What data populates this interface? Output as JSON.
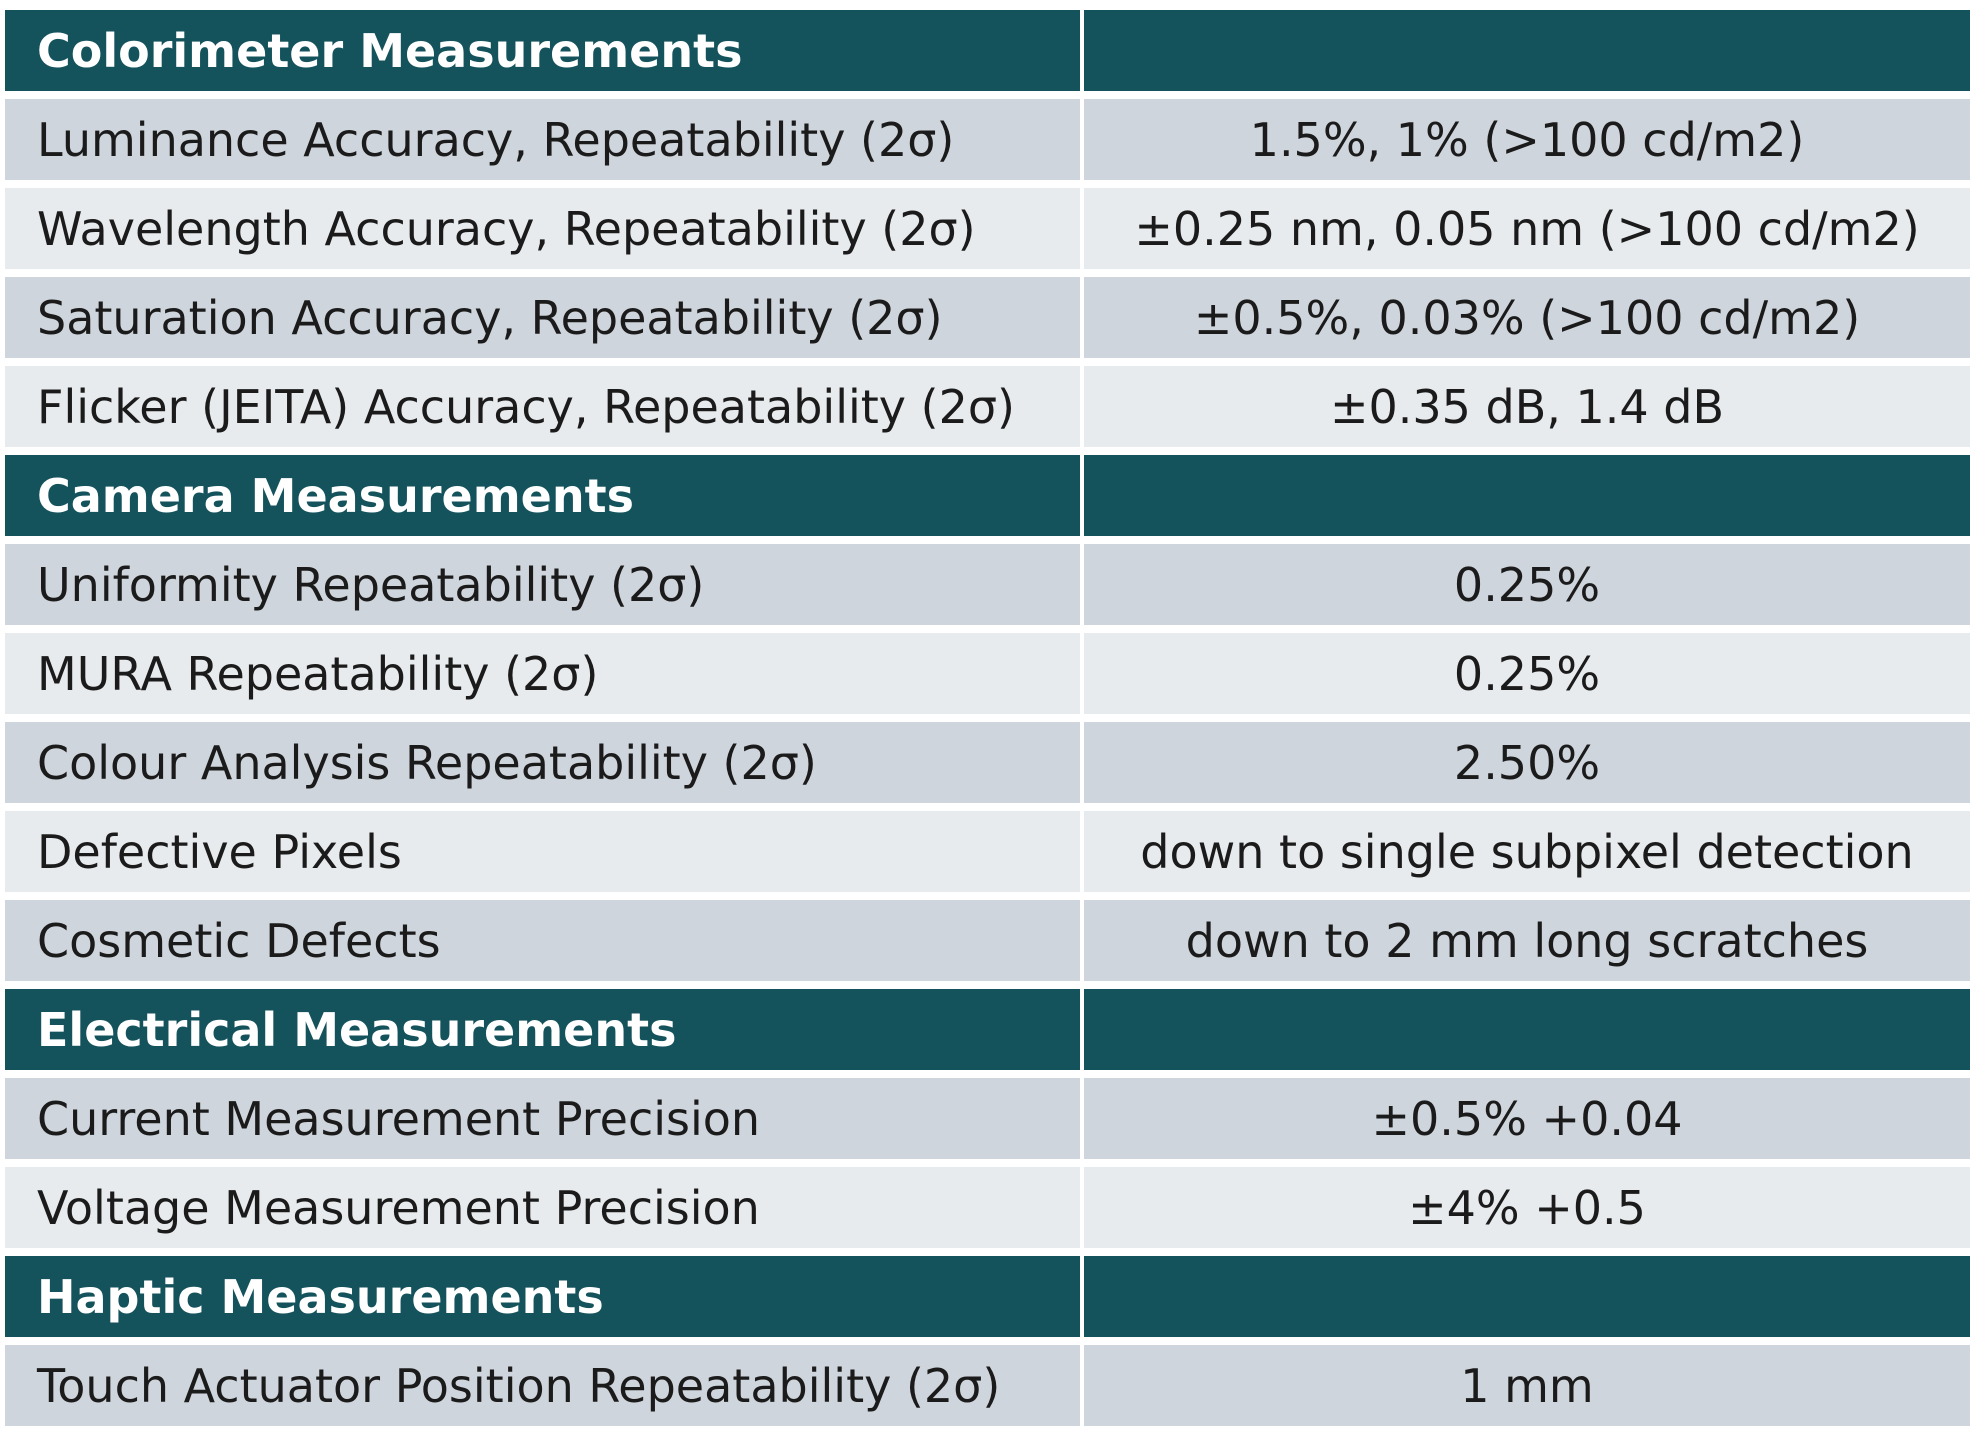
{
  "sections": [
    {
      "title": "Colorimeter Measurements",
      "rows": [
        {
          "label": "Luminance Accuracy, Repeatability (2σ)",
          "value": "1.5%, 1% (>100 cd/m2)"
        },
        {
          "label": "Wavelength Accuracy, Repeatability (2σ)",
          "value": "±0.25 nm, 0.05 nm  (>100 cd/m2)"
        },
        {
          "label": "Saturation Accuracy, Repeatability (2σ)",
          "value": "±0.5%, 0.03%  (>100 cd/m2)"
        },
        {
          "label": "Flicker (JEITA) Accuracy, Repeatability  (2σ)",
          "value": "±0.35 dB, 1.4 dB"
        }
      ]
    },
    {
      "title": "Camera Measurements",
      "rows": [
        {
          "label": "Uniformity  Repeatability (2σ)",
          "value": "0.25%"
        },
        {
          "label": "MURA Repeatability (2σ)",
          "value": "0.25%"
        },
        {
          "label": "Colour Analysis Repeatability (2σ)",
          "value": "2.50%"
        },
        {
          "label": "Defective Pixels",
          "value": "down to single subpixel detection"
        },
        {
          "label": "Cosmetic Defects",
          "value": "down to 2 mm long scratches"
        }
      ]
    },
    {
      "title": "Electrical Measurements",
      "rows": [
        {
          "label": "Current Measurement Precision",
          "value": "±0.5% +0.04"
        },
        {
          "label": "Voltage Measurement Precision",
          "value": "±4% +0.5"
        }
      ]
    },
    {
      "title": "Haptic Measurements",
      "rows": [
        {
          "label": "Touch Actuator Position Repeatability  (2σ)",
          "value": "1 mm"
        }
      ]
    }
  ]
}
